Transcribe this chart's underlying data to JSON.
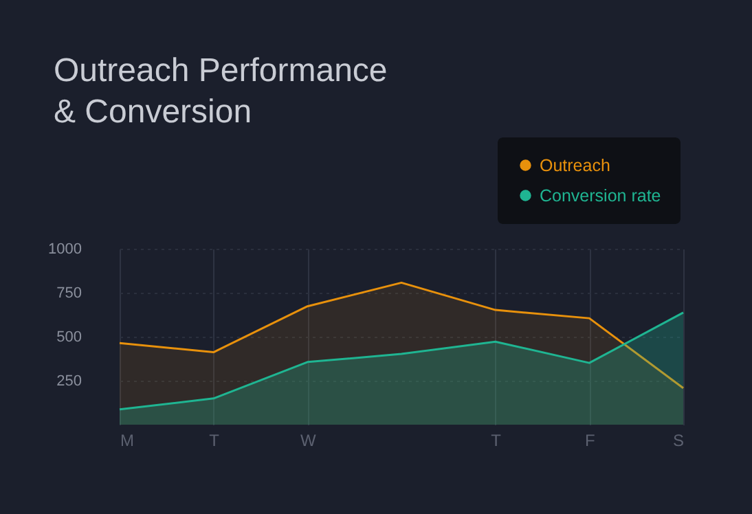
{
  "chart_data": {
    "type": "area",
    "title": "Outreach Performance & Conversion",
    "categories": [
      "M",
      "T",
      "W",
      null,
      "T",
      "F",
      "S"
    ],
    "ylim": [
      0,
      1000
    ],
    "yticks": [
      250,
      500,
      750,
      1000
    ],
    "series": [
      {
        "name": "Outreach",
        "color": "#e8910c",
        "values": [
          464,
          412,
          673,
          807,
          652,
          605,
          208
        ]
      },
      {
        "name": "Conversion rate",
        "color": "#1fb592",
        "values": [
          87,
          149,
          356,
          402,
          472,
          351,
          637
        ]
      }
    ],
    "grid": true,
    "legend": "top right"
  }
}
